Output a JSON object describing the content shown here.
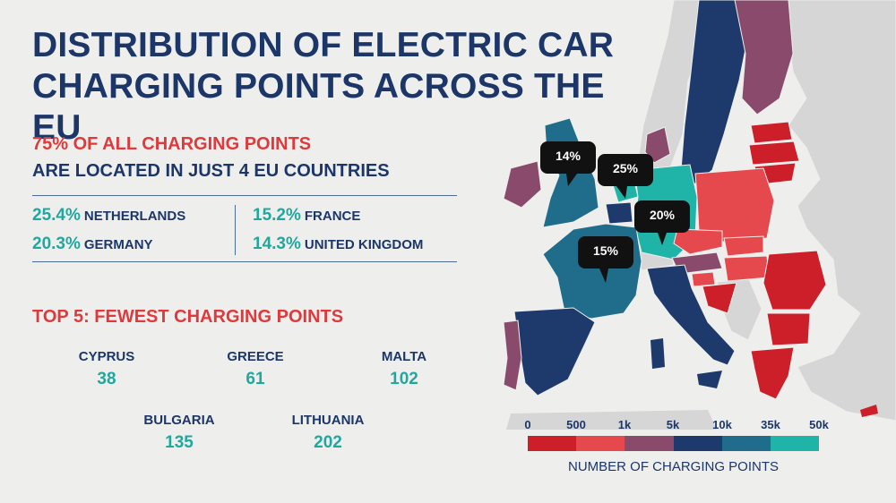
{
  "title_line1": "DISTRIBUTION OF ELECTRIC CAR",
  "title_line2": "CHARGING POINTS ACROSS THE EU",
  "highlight_red": "75% OF ALL CHARGING POINTS",
  "highlight_blue": "ARE LOCATED IN JUST 4 EU COUNTRIES",
  "top_countries": [
    {
      "pct": "25.4%",
      "country": "NETHERLANDS"
    },
    {
      "pct": "20.3%",
      "country": "GERMANY"
    },
    {
      "pct": "15.2%",
      "country": "FRANCE"
    },
    {
      "pct": "14.3%",
      "country": "UNITED KINGDOM"
    }
  ],
  "fewest_title": "TOP 5: FEWEST CHARGING POINTS",
  "fewest": [
    {
      "country": "CYPRUS",
      "value": "38"
    },
    {
      "country": "GREECE",
      "value": "61"
    },
    {
      "country": "MALTA",
      "value": "102"
    },
    {
      "country": "BULGARIA",
      "value": "135"
    },
    {
      "country": "LITHUANIA",
      "value": "202"
    }
  ],
  "map_pins": {
    "uk": "14%",
    "netherlands": "25%",
    "germany": "20%",
    "france": "15%"
  },
  "legend": {
    "ticks": [
      "0",
      "500",
      "1k",
      "5k",
      "10k",
      "35k",
      "50k"
    ],
    "colors": [
      "#cc1f2a",
      "#e5484d",
      "#8a4a6c",
      "#1e3a6c",
      "#1f6d8a",
      "#20b3a8"
    ],
    "title": "NUMBER OF CHARGING POINTS"
  },
  "colors": {
    "navy": "#1c3668",
    "red": "#e0393b",
    "teal": "#20a89e",
    "background": "#eeefed",
    "non_eu_land": "#d6d6d6"
  }
}
